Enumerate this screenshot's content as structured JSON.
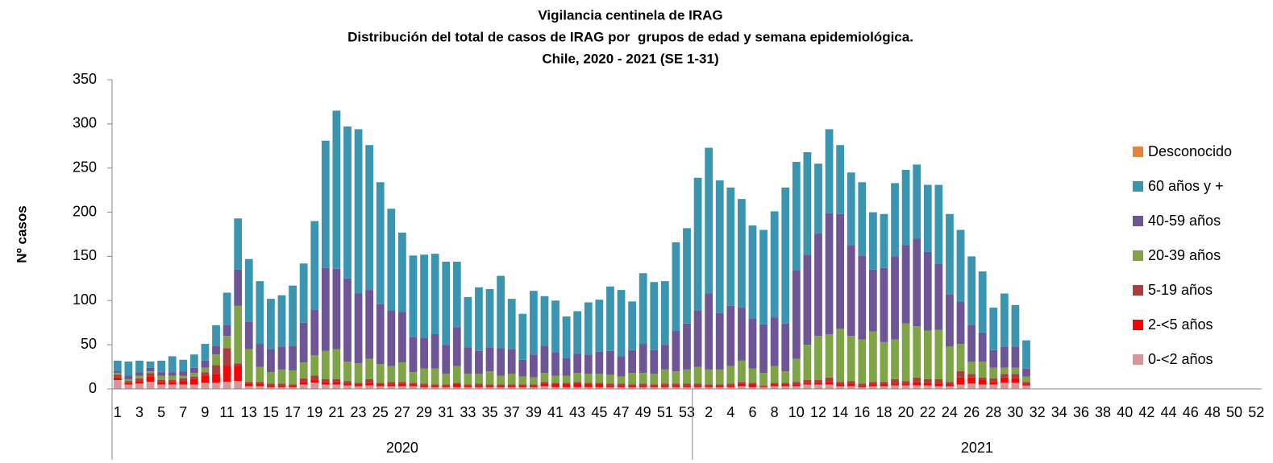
{
  "chart_data": {
    "type": "stacked_bar",
    "title": "Vigilancia centinela de IRAG",
    "subtitle": "Distribución del total de casos de IRAG por  grupos de edad y semana epidemiológica.",
    "subtitle2": "Chile, 2020 - 2021 (SE 1-31)",
    "y_label": "Nº casos",
    "ylim": [
      0,
      350
    ],
    "yticks": [
      0,
      50,
      100,
      150,
      200,
      250,
      300,
      350
    ],
    "legend": "right",
    "groups": [
      {
        "name": "2020",
        "categories": [
          "1",
          null,
          "3",
          null,
          "5",
          null,
          "7",
          null,
          "9",
          null,
          "11",
          null,
          "13",
          null,
          "15",
          null,
          "17",
          null,
          "19",
          null,
          "21",
          null,
          "23",
          null,
          "25",
          null,
          "27",
          null,
          "29",
          null,
          "31",
          null,
          "33",
          null,
          "35",
          null,
          "37",
          null,
          "39",
          null,
          "41",
          null,
          "43",
          null,
          "45",
          null,
          "47",
          null,
          "49",
          null,
          "51",
          null,
          "53"
        ]
      },
      {
        "name": "2021",
        "categories": [
          null,
          "2",
          null,
          "4",
          null,
          "6",
          null,
          "8",
          null,
          "10",
          null,
          "12",
          null,
          "14",
          null,
          "16",
          null,
          "18",
          null,
          "20",
          null,
          "22",
          null,
          "24",
          null,
          "26",
          null,
          "28",
          null,
          "30",
          null,
          "32",
          null,
          "34",
          null,
          "36",
          null,
          "38",
          null,
          "40",
          null,
          "42",
          null,
          "44",
          null,
          "46",
          null,
          "48",
          null,
          "50",
          null,
          "52"
        ]
      }
    ],
    "series": [
      {
        "name": "0-<2 años",
        "color": "#d99694",
        "values": [
          10,
          5,
          6,
          8,
          5,
          5,
          5,
          5,
          7,
          7,
          8,
          9,
          3,
          3,
          2,
          2,
          2,
          5,
          7,
          5,
          5,
          4,
          3,
          4,
          3,
          3,
          3,
          3,
          2,
          2,
          2,
          2,
          2,
          2,
          2,
          2,
          2,
          2,
          2,
          3,
          2,
          2,
          2,
          2,
          2,
          2,
          2,
          2,
          2,
          2,
          2,
          2,
          2,
          2,
          2,
          2,
          2,
          3,
          2,
          2,
          3,
          3,
          3,
          5,
          5,
          5,
          3,
          3,
          2,
          3,
          3,
          4,
          4,
          4,
          4,
          3,
          3,
          5,
          6,
          5,
          5,
          7,
          7,
          4,
          null,
          null,
          null,
          null,
          null,
          null,
          null,
          null,
          null,
          null,
          null,
          null,
          null,
          null,
          null,
          null,
          null,
          null,
          null,
          null,
          null
        ]
      },
      {
        "name": "2-<5 años",
        "color": "#ff0000",
        "values": [
          3,
          2,
          3,
          6,
          3,
          3,
          4,
          6,
          8,
          10,
          18,
          17,
          3,
          3,
          2,
          2,
          2,
          3,
          3,
          3,
          3,
          2,
          2,
          3,
          2,
          2,
          3,
          2,
          2,
          2,
          2,
          3,
          2,
          2,
          2,
          2,
          2,
          2,
          2,
          3,
          3,
          3,
          4,
          3,
          3,
          2,
          2,
          2,
          2,
          2,
          2,
          2,
          2,
          2,
          2,
          2,
          2,
          3,
          3,
          1,
          2,
          2,
          2,
          2,
          2,
          3,
          2,
          3,
          2,
          2,
          2,
          2,
          2,
          4,
          3,
          3,
          2,
          8,
          7,
          5,
          3,
          6,
          5,
          2,
          null,
          null,
          null,
          null,
          null,
          null,
          null,
          null,
          null,
          null,
          null,
          null,
          null,
          null,
          null,
          null,
          null,
          null,
          null,
          null,
          null
        ]
      },
      {
        "name": "5-19 años",
        "color": "#a83f3c",
        "values": [
          3,
          2,
          3,
          4,
          2,
          2,
          3,
          3,
          4,
          10,
          20,
          3,
          2,
          2,
          2,
          2,
          1,
          4,
          5,
          3,
          3,
          3,
          2,
          4,
          2,
          3,
          2,
          2,
          2,
          1,
          1,
          2,
          1,
          2,
          1,
          1,
          1,
          1,
          1,
          2,
          2,
          2,
          2,
          2,
          2,
          2,
          2,
          1,
          2,
          1,
          2,
          2,
          2,
          2,
          1,
          1,
          2,
          2,
          2,
          1,
          2,
          2,
          3,
          3,
          3,
          5,
          3,
          3,
          2,
          3,
          3,
          5,
          3,
          5,
          4,
          5,
          3,
          7,
          4,
          3,
          4,
          4,
          5,
          2,
          null,
          null,
          null,
          null,
          null,
          null,
          null,
          null,
          null,
          null,
          null,
          null,
          null,
          null,
          null,
          null,
          null,
          null,
          null,
          null,
          null
        ]
      },
      {
        "name": "20-39 años",
        "color": "#7ea446",
        "values": [
          2,
          2,
          3,
          2,
          5,
          5,
          3,
          4,
          5,
          12,
          14,
          65,
          37,
          17,
          13,
          16,
          16,
          18,
          23,
          32,
          34,
          22,
          22,
          23,
          21,
          18,
          22,
          12,
          17,
          18,
          12,
          19,
          12,
          11,
          15,
          10,
          12,
          9,
          8,
          10,
          8,
          8,
          10,
          10,
          10,
          10,
          8,
          13,
          12,
          12,
          16,
          14,
          16,
          19,
          17,
          17,
          20,
          24,
          16,
          14,
          19,
          13,
          26,
          40,
          50,
          49,
          60,
          51,
          50,
          57,
          45,
          45,
          65,
          58,
          55,
          56,
          40,
          31,
          14,
          18,
          12,
          7,
          7,
          6,
          null,
          null,
          null,
          null,
          null,
          null,
          null,
          null,
          null,
          null,
          null,
          null,
          null,
          null,
          null,
          null,
          null,
          null,
          null,
          null,
          null
        ]
      },
      {
        "name": "40-59 años",
        "color": "#6e5596",
        "values": [
          2,
          4,
          4,
          4,
          4,
          4,
          5,
          6,
          8,
          10,
          12,
          41,
          31,
          26,
          26,
          26,
          28,
          45,
          52,
          94,
          91,
          94,
          79,
          78,
          68,
          63,
          57,
          40,
          35,
          39,
          33,
          44,
          30,
          26,
          27,
          31,
          28,
          19,
          26,
          31,
          26,
          20,
          22,
          22,
          25,
          27,
          23,
          26,
          33,
          27,
          28,
          46,
          52,
          64,
          86,
          64,
          68,
          60,
          57,
          55,
          55,
          54,
          100,
          102,
          116,
          137,
          130,
          103,
          95,
          70,
          84,
          94,
          89,
          99,
          89,
          75,
          59,
          48,
          41,
          33,
          20,
          24,
          24,
          9,
          null,
          null,
          null,
          null,
          null,
          null,
          null,
          null,
          null,
          null,
          null,
          null,
          null,
          null,
          null,
          null,
          null,
          null,
          null,
          null,
          null
        ]
      },
      {
        "name": "60 años y +",
        "color": "#3a95b1",
        "values": [
          12,
          16,
          13,
          7,
          13,
          18,
          13,
          15,
          19,
          23,
          37,
          58,
          71,
          71,
          57,
          58,
          68,
          67,
          100,
          144,
          179,
          172,
          186,
          164,
          138,
          115,
          90,
          92,
          94,
          91,
          94,
          74,
          57,
          72,
          66,
          82,
          57,
          52,
          72,
          56,
          59,
          47,
          48,
          59,
          59,
          73,
          75,
          55,
          80,
          77,
          72,
          100,
          108,
          150,
          165,
          150,
          134,
          123,
          105,
          107,
          120,
          154,
          123,
          116,
          79,
          95,
          78,
          82,
          83,
          65,
          61,
          83,
          85,
          84,
          76,
          89,
          91,
          81,
          78,
          69,
          48,
          60,
          47,
          32,
          null,
          null,
          null,
          null,
          null,
          null,
          null,
          null,
          null,
          null,
          null,
          null,
          null,
          null,
          null,
          null,
          null,
          null,
          null,
          null,
          null
        ]
      },
      {
        "name": "Desconocido",
        "color": "#e8843a",
        "values": [
          0,
          0,
          0,
          0,
          0,
          0,
          0,
          0,
          0,
          0,
          0,
          0,
          0,
          0,
          0,
          0,
          0,
          0,
          0,
          0,
          0,
          0,
          0,
          0,
          0,
          0,
          0,
          0,
          0,
          0,
          0,
          0,
          0,
          0,
          0,
          0,
          0,
          0,
          0,
          0,
          0,
          0,
          0,
          0,
          0,
          0,
          0,
          0,
          0,
          0,
          0,
          0,
          0,
          0,
          0,
          0,
          0,
          0,
          0,
          0,
          0,
          0,
          0,
          0,
          0,
          0,
          0,
          0,
          0,
          0,
          0,
          0,
          0,
          0,
          0,
          0,
          0,
          0,
          0,
          0,
          0,
          0,
          0,
          0,
          null,
          null,
          null,
          null,
          null,
          null,
          null,
          null,
          null,
          null,
          null,
          null,
          null,
          null,
          null,
          null,
          null,
          null,
          null,
          null,
          null
        ]
      }
    ]
  }
}
